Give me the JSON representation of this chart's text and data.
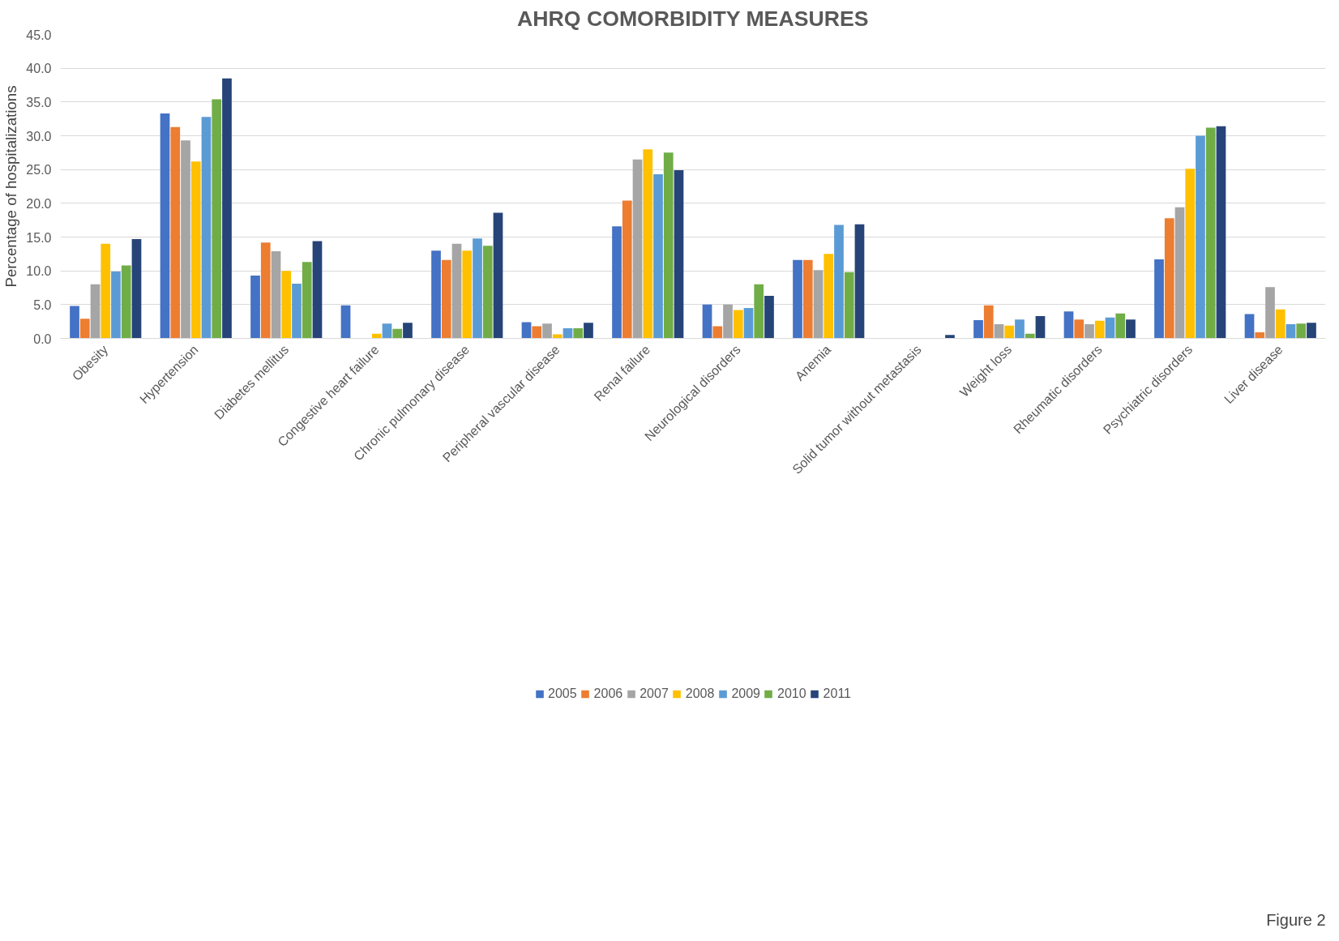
{
  "chart_data": {
    "type": "bar",
    "title": "AHRQ COMORBIDITY MEASURES",
    "ylabel": "Percentage of hospitalizations",
    "categories": [
      "Obesity",
      "Hypertension",
      "Diabetes mellitus",
      "Congestive heart failure",
      "Chronic pulmonary disease",
      "Peripheral vascular disease",
      "Renal failure",
      "Neurological disorders",
      "Anemia",
      "Solid tumor without metastasis",
      "Weight loss",
      "Rheumatic disorders",
      "Psychiatric disorders",
      "Liver disease"
    ],
    "series": [
      {
        "name": "2005",
        "color": "#4472c4",
        "values": [
          4.8,
          33.3,
          9.3,
          4.9,
          13.0,
          2.4,
          16.6,
          5.0,
          11.6,
          0,
          2.7,
          4.0,
          11.7,
          3.6
        ]
      },
      {
        "name": "2006",
        "color": "#ed7d31",
        "values": [
          2.9,
          31.3,
          14.2,
          0,
          11.6,
          1.8,
          20.4,
          1.8,
          11.6,
          0,
          4.9,
          2.8,
          17.8,
          0.9
        ]
      },
      {
        "name": "2007",
        "color": "#a5a5a5",
        "values": [
          8.0,
          29.3,
          12.9,
          0,
          14.0,
          2.2,
          26.5,
          5.0,
          10.1,
          0,
          2.1,
          2.1,
          19.4,
          7.6
        ]
      },
      {
        "name": "2008",
        "color": "#ffc000",
        "values": [
          14.0,
          26.2,
          10.0,
          0.7,
          13.0,
          0.6,
          28.0,
          4.2,
          12.5,
          0,
          1.9,
          2.6,
          25.1,
          4.3
        ]
      },
      {
        "name": "2009",
        "color": "#5b9bd5",
        "values": [
          9.9,
          32.8,
          8.1,
          2.2,
          14.8,
          1.5,
          24.3,
          4.5,
          16.8,
          0,
          2.8,
          3.1,
          30.0,
          2.1
        ]
      },
      {
        "name": "2010",
        "color": "#70ad47",
        "values": [
          10.8,
          35.4,
          11.3,
          1.4,
          13.7,
          1.5,
          27.5,
          8.0,
          9.8,
          0,
          0.7,
          3.7,
          31.2,
          2.2
        ]
      },
      {
        "name": "2011",
        "color": "#264478",
        "values": [
          14.7,
          38.5,
          14.4,
          2.3,
          18.6,
          2.3,
          24.9,
          6.3,
          16.9,
          0.5,
          3.3,
          2.8,
          31.4,
          2.3
        ]
      }
    ],
    "ylim": [
      0,
      45
    ],
    "yticks": [
      {
        "value": 0,
        "label": "0.0"
      },
      {
        "value": 5,
        "label": "5.0"
      },
      {
        "value": 10,
        "label": "10.0"
      },
      {
        "value": 15,
        "label": "15.0"
      },
      {
        "value": 20,
        "label": "20.0"
      },
      {
        "value": 25,
        "label": "25.0"
      },
      {
        "value": 30,
        "label": "30.0"
      },
      {
        "value": 35,
        "label": "35.0"
      },
      {
        "value": 40,
        "label": "40.0"
      },
      {
        "value": 45,
        "label": "45.0"
      }
    ],
    "grid": "y",
    "legend": "bottom",
    "annotations": [
      "Figure 2"
    ]
  }
}
